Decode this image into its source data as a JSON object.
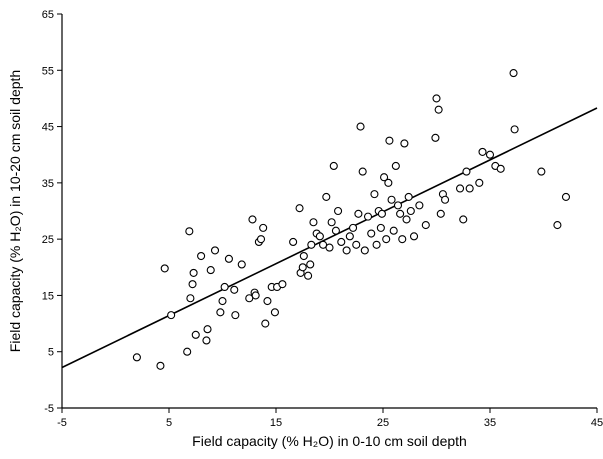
{
  "chart_data": {
    "type": "scatter",
    "title": "",
    "xlabel": "Field capacity (% H₂O) in 0-10 cm soil depth",
    "ylabel": "Field capacity (% H₂O) in 10-20 cm soil depth",
    "xlim": [
      -5,
      45
    ],
    "ylim": [
      -5,
      65
    ],
    "x_ticks": [
      -5,
      5,
      15,
      25,
      35,
      45
    ],
    "y_ticks": [
      -5,
      5,
      15,
      25,
      35,
      45,
      55,
      65
    ],
    "grid": false,
    "marker": "open-circle",
    "points": [
      [
        2.0,
        4.0
      ],
      [
        4.2,
        2.5
      ],
      [
        4.6,
        19.8
      ],
      [
        5.2,
        11.5
      ],
      [
        6.7,
        5.0
      ],
      [
        6.9,
        26.4
      ],
      [
        7.0,
        14.5
      ],
      [
        7.2,
        17.0
      ],
      [
        7.3,
        19.0
      ],
      [
        7.5,
        8.0
      ],
      [
        8.0,
        22.0
      ],
      [
        8.5,
        7.0
      ],
      [
        8.6,
        9.0
      ],
      [
        8.9,
        19.5
      ],
      [
        9.3,
        23.0
      ],
      [
        9.8,
        12.0
      ],
      [
        10.0,
        14.0
      ],
      [
        10.2,
        16.5
      ],
      [
        10.6,
        21.5
      ],
      [
        11.1,
        16.0
      ],
      [
        11.2,
        11.5
      ],
      [
        11.8,
        20.5
      ],
      [
        12.5,
        14.5
      ],
      [
        12.8,
        28.5
      ],
      [
        13.0,
        15.5
      ],
      [
        13.1,
        15.0
      ],
      [
        13.4,
        24.5
      ],
      [
        13.6,
        25.0
      ],
      [
        13.8,
        27.0
      ],
      [
        14.0,
        10.0
      ],
      [
        14.2,
        14.0
      ],
      [
        14.6,
        16.5
      ],
      [
        14.9,
        12.0
      ],
      [
        15.1,
        16.5
      ],
      [
        15.6,
        17.0
      ],
      [
        16.6,
        24.5
      ],
      [
        17.2,
        30.5
      ],
      [
        17.3,
        19.0
      ],
      [
        17.5,
        20.0
      ],
      [
        17.6,
        22.0
      ],
      [
        18.0,
        18.5
      ],
      [
        18.2,
        20.5
      ],
      [
        18.3,
        24.0
      ],
      [
        18.5,
        28.0
      ],
      [
        18.8,
        26.0
      ],
      [
        19.1,
        25.5
      ],
      [
        19.4,
        24.0
      ],
      [
        19.7,
        32.5
      ],
      [
        20.0,
        23.5
      ],
      [
        20.2,
        28.0
      ],
      [
        20.4,
        38.0
      ],
      [
        20.6,
        26.5
      ],
      [
        20.8,
        30.0
      ],
      [
        21.1,
        24.5
      ],
      [
        21.6,
        23.0
      ],
      [
        21.9,
        25.5
      ],
      [
        22.2,
        27.0
      ],
      [
        22.5,
        24.0
      ],
      [
        22.7,
        29.5
      ],
      [
        22.9,
        45.0
      ],
      [
        23.1,
        37.0
      ],
      [
        23.3,
        23.0
      ],
      [
        23.6,
        29.0
      ],
      [
        23.9,
        26.0
      ],
      [
        24.2,
        33.0
      ],
      [
        24.4,
        24.0
      ],
      [
        24.6,
        30.0
      ],
      [
        24.8,
        27.0
      ],
      [
        24.9,
        29.5
      ],
      [
        25.1,
        36.0
      ],
      [
        25.3,
        25.0
      ],
      [
        25.5,
        35.0
      ],
      [
        25.6,
        42.5
      ],
      [
        25.8,
        32.0
      ],
      [
        26.0,
        26.5
      ],
      [
        26.2,
        38.0
      ],
      [
        26.4,
        31.0
      ],
      [
        26.6,
        29.5
      ],
      [
        26.8,
        25.0
      ],
      [
        27.0,
        42.0
      ],
      [
        27.2,
        28.5
      ],
      [
        27.4,
        32.5
      ],
      [
        27.6,
        30.0
      ],
      [
        27.9,
        25.5
      ],
      [
        28.4,
        31.0
      ],
      [
        29.0,
        27.5
      ],
      [
        29.9,
        43.0
      ],
      [
        30.0,
        50.0
      ],
      [
        30.2,
        48.0
      ],
      [
        30.4,
        29.5
      ],
      [
        30.6,
        33.0
      ],
      [
        30.8,
        32.0
      ],
      [
        32.2,
        34.0
      ],
      [
        32.5,
        28.5
      ],
      [
        32.8,
        37.0
      ],
      [
        33.1,
        34.0
      ],
      [
        34.0,
        35.0
      ],
      [
        34.3,
        40.5
      ],
      [
        35.0,
        40.0
      ],
      [
        35.5,
        38.0
      ],
      [
        36.0,
        37.5
      ],
      [
        37.2,
        54.5
      ],
      [
        37.3,
        44.5
      ],
      [
        39.8,
        37.0
      ],
      [
        41.3,
        27.5
      ],
      [
        42.1,
        32.5
      ]
    ],
    "regression_line": {
      "x": [
        -5,
        45
      ],
      "y": [
        2.2,
        48.3
      ]
    }
  }
}
